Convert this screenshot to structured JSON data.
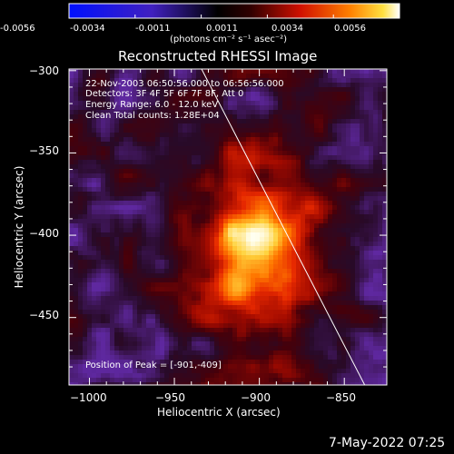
{
  "colorbar": {
    "tick_labels": [
      "-0.0056",
      "-0.0034",
      "-0.0011",
      "0.0011",
      "0.0034",
      "0.0056"
    ],
    "unit_label": "(photons cm⁻² s⁻¹ asec⁻²)",
    "range": [
      -0.0056,
      0.0056
    ],
    "colormap": "blue-black-red-yellow-white"
  },
  "title": "Reconstructed RHESSI Image",
  "annotations": {
    "time": "22-Nov-2003 06:50:56.000 to 06:56:56.000",
    "detectors": "Detectors: 3F 4F 5F 6F 7F 8F, Att 0",
    "energy": "Energy Range: 6.0 - 12.0 keV",
    "clean": "Clean     Total counts: 1.28E+04",
    "peak": "Position of Peak = [-901,-409]"
  },
  "footer_timestamp": "7-May-2022 07:25",
  "chart_data": {
    "type": "heatmap",
    "title": "Reconstructed RHESSI Image",
    "xlabel": "Heliocentric X (arcsec)",
    "ylabel": "Heliocentric Y (arcsec)",
    "xlim": [
      -1012,
      -825
    ],
    "ylim": [
      -491,
      -299
    ],
    "x_ticks": [
      -1000,
      -950,
      -900,
      -850
    ],
    "y_ticks": [
      -300,
      -350,
      -400,
      -450
    ],
    "x_tick_labels": [
      "−1000",
      "−950",
      "−900",
      "−850"
    ],
    "y_tick_labels": [
      "−300",
      "−350",
      "−400",
      "−450"
    ],
    "peak_position": [
      -901,
      -409
    ],
    "limb_line": [
      [
        -934,
        -299
      ],
      [
        -838,
        -491
      ]
    ],
    "colors": {
      "background": "#000000",
      "text": "#ffffff",
      "low": "#5a2a9a"
    }
  }
}
